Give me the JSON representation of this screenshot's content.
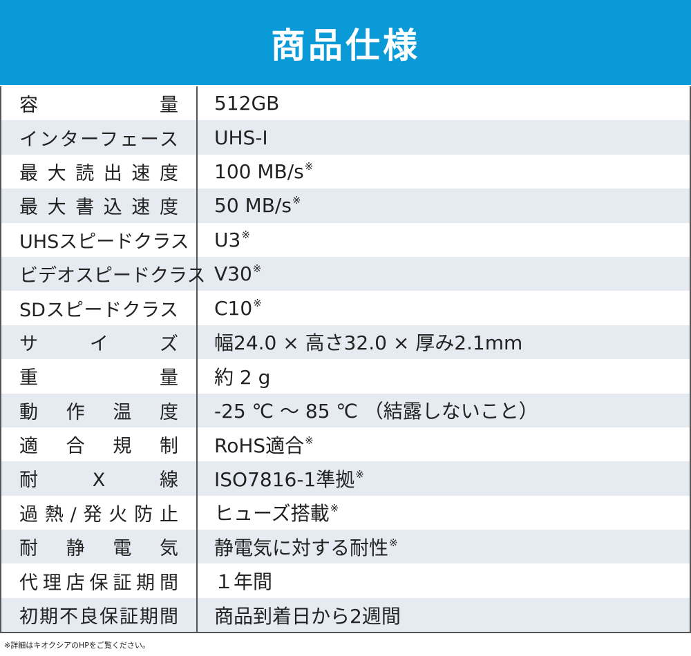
{
  "header": {
    "title": "商品仕様"
  },
  "table": {
    "rows": [
      {
        "label": "容量",
        "value": "512GB"
      },
      {
        "label": "インターフェース",
        "value": "UHS-I"
      },
      {
        "label": "最大読出速度",
        "value": "100 MB/s",
        "note": "※"
      },
      {
        "label": "最大書込速度",
        "value": "50 MB/s",
        "note": "※"
      },
      {
        "label": "UHSスピードクラス",
        "value": "U3",
        "note": "※"
      },
      {
        "label": "ビデオスピードクラス",
        "value": "V30",
        "note": "※"
      },
      {
        "label": "SDスピードクラス",
        "value": "C10",
        "note": "※"
      },
      {
        "label": "サイズ",
        "value": "幅24.0 × 高さ32.0 × 厚み2.1mm"
      },
      {
        "label": "重量",
        "value": "約 2 g"
      },
      {
        "label": "動作温度",
        "value": "-25 ℃ ～ 85 ℃ （結露しないこと）"
      },
      {
        "label": "適合規制",
        "value": "RoHS適合",
        "note": "※"
      },
      {
        "label": "耐X線",
        "value": "ISO7816-1準拠",
        "note": "※"
      },
      {
        "label": "過熱/発火防止",
        "value": "ヒューズ搭載",
        "note": "※"
      },
      {
        "label": "耐静電気",
        "value": "静電気に対する耐性",
        "note": "※"
      },
      {
        "label": "代理店保証期間",
        "value": "１年間"
      },
      {
        "label": "初期不良保証期間",
        "value": "商品到着日から2週間"
      }
    ]
  },
  "footer": {
    "note": "※詳細はキオクシアのHPをご覧ください。"
  }
}
